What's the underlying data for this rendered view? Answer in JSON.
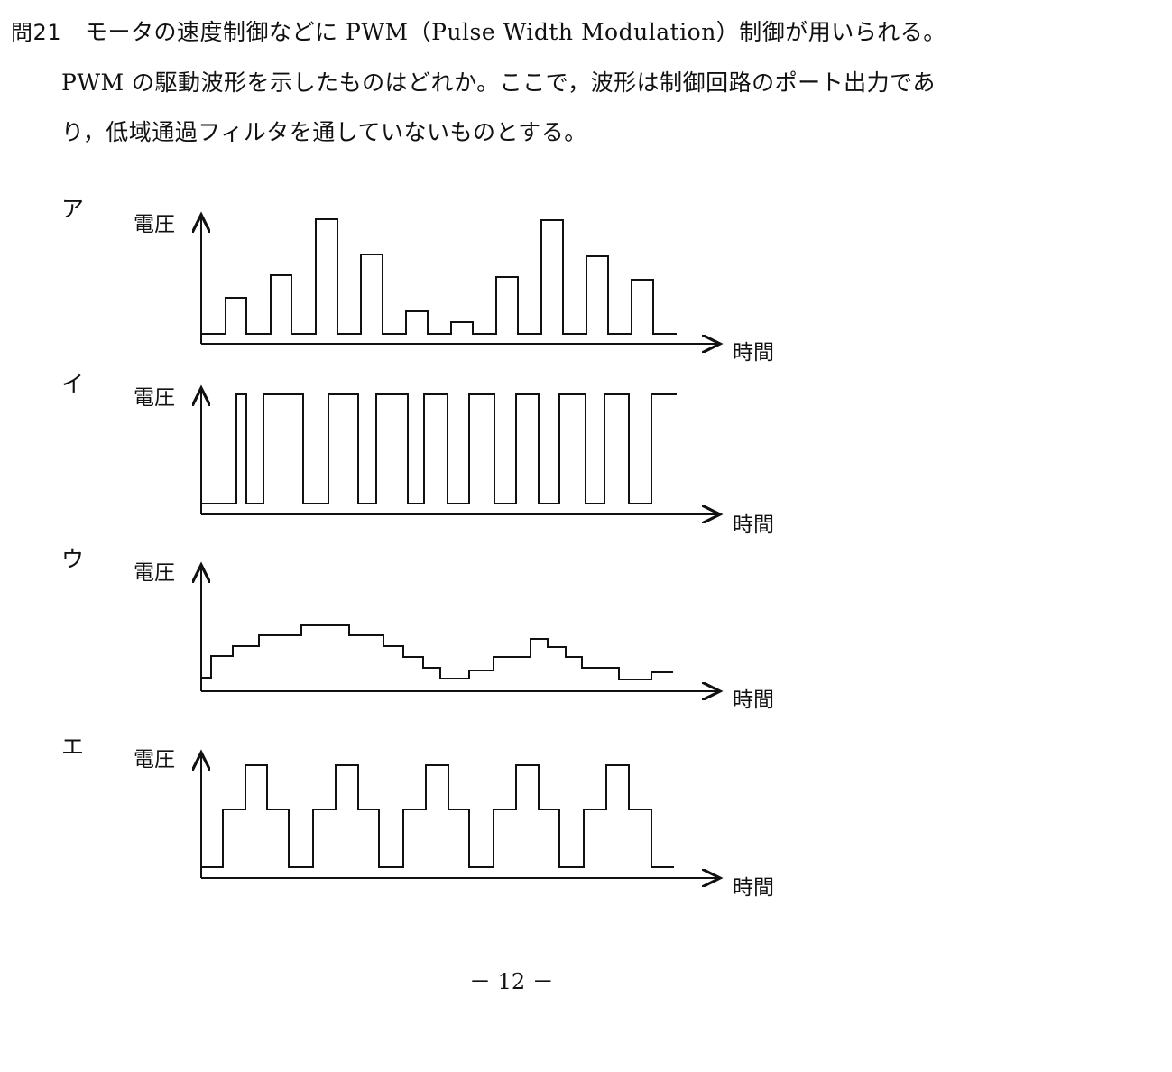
{
  "question": {
    "number": "問21",
    "line1": "モータの速度制御などに PWM（Pulse Width Modulation）制御が用いられる。",
    "line2": "PWM の駆動波形を示したものはどれか。ここで，波形は制御回路のポート出力であ",
    "line3": "り，低域通過フィルタを通していないものとする。"
  },
  "options": [
    {
      "label": "ア",
      "ylabel": "電圧",
      "xlabel": "時間"
    },
    {
      "label": "イ",
      "ylabel": "電圧",
      "xlabel": "時間"
    },
    {
      "label": "ウ",
      "ylabel": "電圧",
      "xlabel": "時間"
    },
    {
      "label": "エ",
      "ylabel": "電圧",
      "xlabel": "時間"
    }
  ],
  "page_number": "－ 12 －"
}
